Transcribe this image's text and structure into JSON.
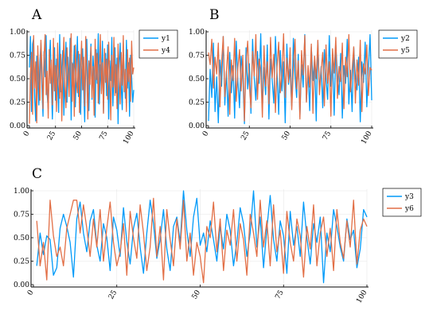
{
  "colors": {
    "s1": "#009af9",
    "s2": "#e26f46",
    "grid": "#e6e6e6",
    "axis": "#000000"
  },
  "chart_data": [
    {
      "type": "line",
      "title": "A",
      "xlim": [
        0,
        100
      ],
      "ylim": [
        0,
        1
      ],
      "xticks": [
        0,
        25,
        50,
        75,
        100
      ],
      "yticks": [
        0.0,
        0.25,
        0.5,
        0.75,
        1.0
      ],
      "xtick_labels": [
        "0",
        "25",
        "50",
        "75",
        "100"
      ],
      "ytick_labels": [
        "0.00",
        "0.25",
        "0.50",
        "0.75",
        "1.00"
      ],
      "grid": true,
      "legend": "top-right-outside",
      "series": [
        {
          "name": "y1",
          "color": "#009af9",
          "y": [
            0.62,
            0.95,
            0.15,
            0.87,
            0.93,
            0.3,
            0.05,
            0.74,
            0.55,
            0.22,
            0.68,
            0.88,
            0.4,
            0.1,
            0.79,
            0.52,
            0.96,
            0.33,
            0.18,
            0.66,
            0.91,
            0.44,
            0.07,
            0.58,
            0.83,
            0.27,
            0.71,
            0.49,
            0.14,
            0.97,
            0.36,
            0.62,
            0.8,
            0.11,
            0.54,
            0.89,
            0.25,
            0.73,
            0.41,
            0.93,
            0.06,
            0.67,
            0.5,
            0.85,
            0.2,
            0.6,
            0.95,
            0.31,
            0.76,
            0.12,
            0.57,
            0.82,
            0.39,
            0.04,
            0.7,
            0.92,
            0.46,
            0.16,
            0.63,
            0.87,
            0.28,
            0.74,
            0.53,
            0.09,
            0.81,
            0.45,
            0.98,
            0.23,
            0.65,
            0.37,
            0.9,
            0.14,
            0.59,
            0.77,
            0.32,
            0.86,
            0.07,
            0.69,
            0.48,
            0.94,
            0.21,
            0.56,
            0.83,
            0.35,
            0.72,
            0.02,
            0.61,
            0.88,
            0.43,
            0.17,
            0.79,
            0.54,
            0.29,
            0.91,
            0.4,
            0.67,
            0.1,
            0.75,
            0.52,
            0.25,
            0.38
          ]
        },
        {
          "name": "y4",
          "color": "#e26f46",
          "y": [
            0.02,
            0.55,
            0.78,
            0.12,
            0.96,
            0.4,
            0.68,
            0.03,
            0.85,
            0.5,
            0.27,
            0.91,
            0.62,
            0.18,
            0.74,
            0.97,
            0.33,
            0.58,
            0.08,
            0.81,
            0.45,
            0.7,
            0.22,
            0.93,
            0.37,
            0.64,
            0.15,
            0.88,
            0.52,
            0.29,
            0.76,
            0.05,
            0.6,
            0.94,
            0.42,
            0.19,
            0.83,
            0.57,
            0.31,
            0.72,
            0.98,
            0.26,
            0.66,
            0.1,
            0.86,
            0.48,
            0.35,
            0.79,
            0.14,
            0.61,
            0.9,
            0.38,
            0.73,
            0.21,
            0.95,
            0.54,
            0.07,
            0.69,
            0.44,
            0.84,
            0.3,
            0.63,
            0.11,
            0.92,
            0.49,
            0.77,
            0.24,
            0.58,
            0.97,
            0.34,
            0.67,
            0.13,
            0.82,
            0.46,
            0.71,
            0.28,
            0.89,
            0.53,
            0.06,
            0.75,
            0.41,
            0.94,
            0.32,
            0.65,
            0.18,
            0.87,
            0.5,
            0.23,
            0.78,
            0.43,
            0.96,
            0.36,
            0.6,
            0.15,
            0.81,
            0.47,
            0.72,
            0.26,
            0.9,
            0.55,
            0.62
          ]
        }
      ]
    },
    {
      "type": "line",
      "title": "B",
      "xlim": [
        0,
        100
      ],
      "ylim": [
        0,
        1
      ],
      "xticks": [
        0,
        25,
        50,
        75,
        100
      ],
      "yticks": [
        0.0,
        0.25,
        0.5,
        0.75,
        1.0
      ],
      "xtick_labels": [
        "0",
        "25",
        "50",
        "75",
        "100"
      ],
      "ytick_labels": [
        "0.00",
        "0.25",
        "0.50",
        "0.75",
        "1.00"
      ],
      "grid": true,
      "legend": "top-right-outside",
      "series": [
        {
          "name": "y2",
          "color": "#009af9",
          "y": [
            0.05,
            0.6,
            0.3,
            0.88,
            0.15,
            0.52,
            0.03,
            0.7,
            0.42,
            0.95,
            0.22,
            0.58,
            0.1,
            0.78,
            0.35,
            0.64,
            0.08,
            0.9,
            0.47,
            0.19,
            0.74,
            0.55,
            0.02,
            0.83,
            0.39,
            0.66,
            0.13,
            0.92,
            0.51,
            0.27,
            0.79,
            0.45,
            0.98,
            0.18,
            0.62,
            0.33,
            0.86,
            0.07,
            0.71,
            0.49,
            0.24,
            0.95,
            0.56,
            0.12,
            0.8,
            0.37,
            0.68,
            0.03,
            0.87,
            0.44,
            0.6,
            0.21,
            0.93,
            0.53,
            0.3,
            0.76,
            0.09,
            0.65,
            0.41,
            0.97,
            0.26,
            0.58,
            0.16,
            0.84,
            0.48,
            0.72,
            0.05,
            0.9,
            0.36,
            0.63,
            0.19,
            0.81,
            0.5,
            0.28,
            0.96,
            0.42,
            0.7,
            0.11,
            0.86,
            0.55,
            0.33,
            0.77,
            0.08,
            0.64,
            0.45,
            0.92,
            0.23,
            0.59,
            0.15,
            0.83,
            0.51,
            0.38,
            0.73,
            0.04,
            0.68,
            0.46,
            0.89,
            0.2,
            0.61,
            0.97,
            0.27
          ]
        },
        {
          "name": "y5",
          "color": "#e26f46",
          "y": [
            0.78,
            0.65,
            0.92,
            0.4,
            0.73,
            0.55,
            0.88,
            0.2,
            0.67,
            0.95,
            0.31,
            0.58,
            0.84,
            0.12,
            0.7,
            0.48,
            0.93,
            0.26,
            0.62,
            0.81,
            0.37,
            0.75,
            0.05,
            0.66,
            0.9,
            0.44,
            0.19,
            0.79,
            0.53,
            0.97,
            0.28,
            0.71,
            0.6,
            0.09,
            0.85,
            0.42,
            0.68,
            0.23,
            0.94,
            0.51,
            0.76,
            0.14,
            0.63,
            0.89,
            0.35,
            0.57,
            0.98,
            0.3,
            0.72,
            0.46,
            0.83,
            0.17,
            0.61,
            0.92,
            0.39,
            0.69,
            0.07,
            0.8,
            0.54,
            0.96,
            0.25,
            0.64,
            0.41,
            0.87,
            0.13,
            0.74,
            0.5,
            0.91,
            0.33,
            0.59,
            0.78,
            0.21,
            0.86,
            0.45,
            0.68,
            0.1,
            0.82,
            0.56,
            0.94,
            0.29,
            0.63,
            0.47,
            0.88,
            0.18,
            0.73,
            0.52,
            0.97,
            0.36,
            0.6,
            0.84,
            0.24,
            0.7,
            0.43,
            0.91,
            0.15,
            0.66,
            0.55,
            0.86,
            0.32,
            0.62,
            0.59
          ]
        }
      ]
    },
    {
      "type": "line",
      "title": "C",
      "xlim": [
        0,
        100
      ],
      "ylim": [
        0,
        1
      ],
      "xticks": [
        0,
        25,
        50,
        75,
        100
      ],
      "yticks": [
        0.0,
        0.25,
        0.5,
        0.75,
        1.0
      ],
      "xtick_labels": [
        "0",
        "25",
        "50",
        "75",
        "100"
      ],
      "ytick_labels": [
        "0.00",
        "0.25",
        "0.50",
        "0.75",
        "1.00"
      ],
      "grid": true,
      "legend": "top-right-outside",
      "series": [
        {
          "name": "y3",
          "color": "#009af9",
          "x": [
            1,
            2,
            3,
            4,
            5,
            6,
            7,
            8,
            9,
            10,
            11,
            12,
            13,
            14,
            15,
            16,
            17,
            18,
            19,
            20,
            21,
            22,
            23,
            24,
            25,
            26,
            27,
            28,
            29,
            30,
            31,
            32,
            33,
            34,
            35,
            36,
            37,
            38,
            39,
            40,
            41,
            42,
            43,
            44,
            45,
            46,
            47,
            48,
            49,
            50,
            51,
            52,
            53,
            54,
            55,
            56,
            57,
            58,
            59,
            60,
            61,
            62,
            63,
            64,
            65,
            66,
            67,
            68,
            69,
            70,
            71,
            72,
            73,
            74,
            75,
            76,
            77,
            78,
            79,
            80,
            81,
            82,
            83,
            84,
            85,
            86,
            87,
            88,
            89,
            90,
            91,
            92,
            93,
            94,
            95,
            96,
            97,
            98,
            99,
            100
          ],
          "y": [
            0.2,
            0.55,
            0.32,
            0.52,
            0.48,
            0.1,
            0.18,
            0.6,
            0.75,
            0.62,
            0.45,
            0.08,
            0.7,
            0.88,
            0.55,
            0.35,
            0.68,
            0.8,
            0.42,
            0.25,
            0.65,
            0.5,
            0.15,
            0.72,
            0.58,
            0.3,
            0.82,
            0.46,
            0.22,
            0.6,
            0.76,
            0.4,
            0.12,
            0.55,
            0.9,
            0.65,
            0.28,
            0.48,
            0.8,
            0.38,
            0.15,
            0.62,
            0.72,
            0.45,
            1.0,
            0.58,
            0.3,
            0.72,
            0.92,
            0.42,
            0.55,
            0.35,
            0.68,
            0.48,
            0.25,
            0.62,
            0.38,
            0.75,
            0.58,
            0.2,
            0.45,
            0.82,
            0.65,
            0.3,
            0.55,
            1.0,
            0.4,
            0.72,
            0.18,
            0.6,
            0.95,
            0.48,
            0.25,
            0.68,
            0.52,
            0.12,
            0.78,
            0.42,
            0.62,
            0.3,
            0.88,
            0.5,
            0.22,
            0.65,
            0.45,
            0.72,
            0.02,
            0.55,
            0.35,
            0.8,
            0.62,
            0.4,
            0.25,
            0.7,
            0.48,
            0.58,
            0.18,
            0.38,
            0.8,
            0.72
          ]
        },
        {
          "name": "y6",
          "color": "#e26f46",
          "x": [
            1,
            2,
            3,
            4,
            5,
            6,
            7,
            8,
            9,
            10,
            11,
            12,
            13,
            14,
            15,
            16,
            17,
            18,
            19,
            20,
            21,
            22,
            23,
            24,
            25,
            26,
            27,
            28,
            29,
            30,
            31,
            32,
            33,
            34,
            35,
            36,
            37,
            38,
            39,
            40,
            41,
            42,
            43,
            44,
            45,
            46,
            47,
            48,
            49,
            50,
            51,
            52,
            53,
            54,
            55,
            56,
            57,
            58,
            59,
            60,
            61,
            62,
            63,
            64,
            65,
            66,
            67,
            68,
            69,
            70,
            71,
            72,
            73,
            74,
            75,
            76,
            77,
            78,
            79,
            80,
            81,
            82,
            83,
            84,
            85,
            86,
            87,
            88,
            89,
            90,
            91,
            92,
            93,
            94,
            95,
            96,
            97,
            98,
            99,
            100
          ],
          "y": [
            0.68,
            0.2,
            0.45,
            0.05,
            0.9,
            0.52,
            0.3,
            0.4,
            0.2,
            0.6,
            0.75,
            0.9,
            0.9,
            0.55,
            0.85,
            0.6,
            0.3,
            0.7,
            0.4,
            0.8,
            0.25,
            0.6,
            0.88,
            0.45,
            0.2,
            0.35,
            0.65,
            0.1,
            0.78,
            0.5,
            0.28,
            0.85,
            0.55,
            0.15,
            0.4,
            0.92,
            0.3,
            0.62,
            0.05,
            0.8,
            0.48,
            0.2,
            0.7,
            0.38,
            0.9,
            0.25,
            0.55,
            0.1,
            0.45,
            0.3,
            0.02,
            0.62,
            0.5,
            0.88,
            0.35,
            0.7,
            0.15,
            0.58,
            0.42,
            0.8,
            0.25,
            0.65,
            0.48,
            0.1,
            0.75,
            0.55,
            0.3,
            0.9,
            0.4,
            0.68,
            0.2,
            0.85,
            0.35,
            0.58,
            0.12,
            0.78,
            0.45,
            0.25,
            0.7,
            0.52,
            0.08,
            0.62,
            0.38,
            0.85,
            0.2,
            0.55,
            0.72,
            0.3,
            0.6,
            0.15,
            0.8,
            0.45,
            0.28,
            0.68,
            0.4,
            0.9,
            0.22,
            0.58,
            0.7,
            0.62
          ]
        }
      ]
    }
  ]
}
